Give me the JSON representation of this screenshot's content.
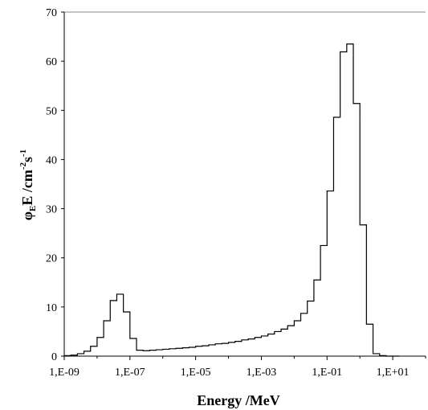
{
  "chart_data": {
    "type": "histogram",
    "xscale": "log",
    "xlabel": "Energy /MeV",
    "ylabel": {
      "phi": "φ",
      "sub": "E",
      "main": "E  /cm",
      "exp1": "-2",
      "s": "s",
      "exp2": "-1"
    },
    "xlim": [
      1e-09,
      100
    ],
    "ylim": [
      0,
      70
    ],
    "x_ticks": [
      {
        "value": 1e-09,
        "label": "1,E-09"
      },
      {
        "value": 1e-07,
        "label": "1,E-07"
      },
      {
        "value": 1e-05,
        "label": "1,E-05"
      },
      {
        "value": 0.001,
        "label": "1,E-03"
      },
      {
        "value": 0.1,
        "label": "1,E-01"
      },
      {
        "value": 10,
        "label": "1,E+01"
      }
    ],
    "y_ticks": [
      0,
      10,
      20,
      30,
      40,
      50,
      60,
      70
    ],
    "line_color": "#000000",
    "bin_edges_log10": [
      -9.0,
      -8.8,
      -8.6,
      -8.4,
      -8.2,
      -8.0,
      -7.8,
      -7.6,
      -7.4,
      -7.2,
      -7.0,
      -6.8,
      -6.6,
      -6.4,
      -6.2,
      -6.0,
      -5.8,
      -5.6,
      -5.4,
      -5.2,
      -5.0,
      -4.8,
      -4.6,
      -4.4,
      -4.2,
      -4.0,
      -3.8,
      -3.6,
      -3.4,
      -3.2,
      -3.0,
      -2.8,
      -2.6,
      -2.4,
      -2.2,
      -2.0,
      -1.8,
      -1.6,
      -1.4,
      -1.2,
      -1.0,
      -0.8,
      -0.6,
      -0.4,
      -0.2,
      0.0,
      0.2,
      0.4,
      0.6,
      0.8,
      1.0,
      1.2
    ],
    "values": [
      0.1,
      0.2,
      0.5,
      1.0,
      2.0,
      3.8,
      7.2,
      11.3,
      12.6,
      9.0,
      3.6,
      1.2,
      1.1,
      1.2,
      1.3,
      1.4,
      1.5,
      1.6,
      1.7,
      1.8,
      2.0,
      2.1,
      2.3,
      2.5,
      2.6,
      2.8,
      3.0,
      3.3,
      3.5,
      3.8,
      4.1,
      4.5,
      5.0,
      5.5,
      6.2,
      7.2,
      8.7,
      11.2,
      15.5,
      22.5,
      33.6,
      48.6,
      61.9,
      63.5,
      51.4,
      26.7,
      6.5,
      0.5,
      0.1,
      0.0,
      0.0
    ]
  }
}
